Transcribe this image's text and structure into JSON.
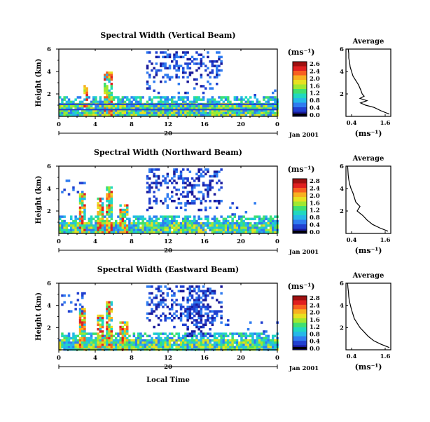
{
  "chart_data": [
    {
      "type": "heatmap",
      "title": "Spectral Width (Vertical Beam)",
      "ylabel": "Height (km)",
      "yticks": [
        "6",
        "4",
        "2"
      ],
      "xticks": [
        "0",
        "4",
        "8",
        "12",
        "16",
        "20",
        "0"
      ],
      "xlim": [
        0,
        24
      ],
      "ylim": [
        0,
        6
      ],
      "date_tick": "20",
      "date_label": "Jan 2001",
      "colorbar": {
        "unit": "(ms⁻¹)",
        "ticks": [
          "2.6",
          "2.4",
          "2.0",
          "1.6",
          "1.2",
          "0.8",
          "0.4",
          "0.0"
        ],
        "range": [
          0,
          2.6
        ]
      },
      "average": {
        "title": "Average",
        "yticks": [
          "6",
          "4",
          "2"
        ],
        "xticks": [
          "0.4",
          "1.6"
        ],
        "xlabel": "(ms⁻¹)",
        "xlim": [
          0.2,
          1.8
        ],
        "profile": [
          [
            1.75,
            0.2
          ],
          [
            1.45,
            0.5
          ],
          [
            1.2,
            0.8
          ],
          [
            0.9,
            1.0
          ],
          [
            0.72,
            1.2
          ],
          [
            0.95,
            1.4
          ],
          [
            0.7,
            1.6
          ],
          [
            0.85,
            1.8
          ],
          [
            0.78,
            2.0
          ],
          [
            0.72,
            2.4
          ],
          [
            0.65,
            2.8
          ],
          [
            0.55,
            3.2
          ],
          [
            0.45,
            3.6
          ],
          [
            0.4,
            4.0
          ],
          [
            0.35,
            4.4
          ],
          [
            0.33,
            4.8
          ],
          [
            0.3,
            5.2
          ],
          [
            0.3,
            5.6
          ],
          [
            0.28,
            6.0
          ]
        ]
      }
    },
    {
      "type": "heatmap",
      "title": "Spectral Width (Northward Beam)",
      "ylabel": "Height (km)",
      "yticks": [
        "6",
        "4",
        "2"
      ],
      "xticks": [
        "0",
        "4",
        "8",
        "12",
        "16",
        "20",
        "0"
      ],
      "xlim": [
        0,
        24
      ],
      "ylim": [
        0,
        6
      ],
      "date_tick": "20",
      "date_label": "Jan 2001",
      "colorbar": {
        "unit": "(ms⁻¹)",
        "ticks": [
          "2.8",
          "2.4",
          "2.0",
          "1.6",
          "1.2",
          "0.8",
          "0.4",
          "0.0"
        ],
        "range": [
          0,
          2.8
        ]
      },
      "average": {
        "title": "Average",
        "yticks": [
          "6",
          "4",
          "2"
        ],
        "xticks": [
          "0.4",
          "1.6"
        ],
        "xlabel": "(ms⁻¹)",
        "xlim": [
          0.2,
          1.8
        ],
        "profile": [
          [
            1.7,
            0.2
          ],
          [
            1.4,
            0.5
          ],
          [
            1.15,
            0.8
          ],
          [
            0.95,
            1.2
          ],
          [
            0.8,
            1.6
          ],
          [
            0.6,
            2.0
          ],
          [
            0.7,
            2.4
          ],
          [
            0.55,
            2.8
          ],
          [
            0.5,
            3.2
          ],
          [
            0.45,
            3.6
          ],
          [
            0.38,
            4.0
          ],
          [
            0.33,
            4.4
          ],
          [
            0.3,
            4.8
          ],
          [
            0.28,
            5.2
          ],
          [
            0.27,
            5.6
          ],
          [
            0.26,
            6.0
          ]
        ]
      }
    },
    {
      "type": "heatmap",
      "title": "Spectral Width (Eastward Beam)",
      "ylabel": "Height (km)",
      "yticks": [
        "6",
        "4",
        "2"
      ],
      "xticks": [
        "0",
        "4",
        "8",
        "12",
        "16",
        "20",
        "0"
      ],
      "xlim": [
        0,
        24
      ],
      "ylim": [
        0,
        6
      ],
      "date_tick": "20",
      "date_label": "Jan 2001",
      "xlabel": "Local Time",
      "colorbar": {
        "unit": "(ms⁻¹)",
        "ticks": [
          "2.8",
          "2.4",
          "2.0",
          "1.6",
          "1.2",
          "0.8",
          "0.4",
          "0.0"
        ],
        "range": [
          0,
          2.8
        ]
      },
      "average": {
        "title": "Average",
        "yticks": [
          "6",
          "4",
          "2"
        ],
        "xticks": [
          "0.4",
          "1.6"
        ],
        "xlabel": "(ms⁻¹)",
        "xlim": [
          0.2,
          1.8
        ],
        "profile": [
          [
            1.75,
            0.2
          ],
          [
            1.45,
            0.5
          ],
          [
            1.2,
            0.8
          ],
          [
            1.0,
            1.2
          ],
          [
            0.85,
            1.6
          ],
          [
            0.7,
            2.0
          ],
          [
            0.6,
            2.4
          ],
          [
            0.5,
            2.8
          ],
          [
            0.45,
            3.2
          ],
          [
            0.4,
            3.6
          ],
          [
            0.36,
            4.0
          ],
          [
            0.32,
            4.4
          ],
          [
            0.3,
            4.8
          ],
          [
            0.29,
            5.2
          ],
          [
            0.27,
            5.6
          ],
          [
            0.26,
            6.0
          ]
        ]
      }
    }
  ],
  "colorscale": [
    "#1a1a9a",
    "#2040d0",
    "#2f7cf0",
    "#25b8e8",
    "#20d8c0",
    "#40e070",
    "#a0e830",
    "#e8e020",
    "#f8b020",
    "#f86020",
    "#e02020",
    "#a01010"
  ]
}
